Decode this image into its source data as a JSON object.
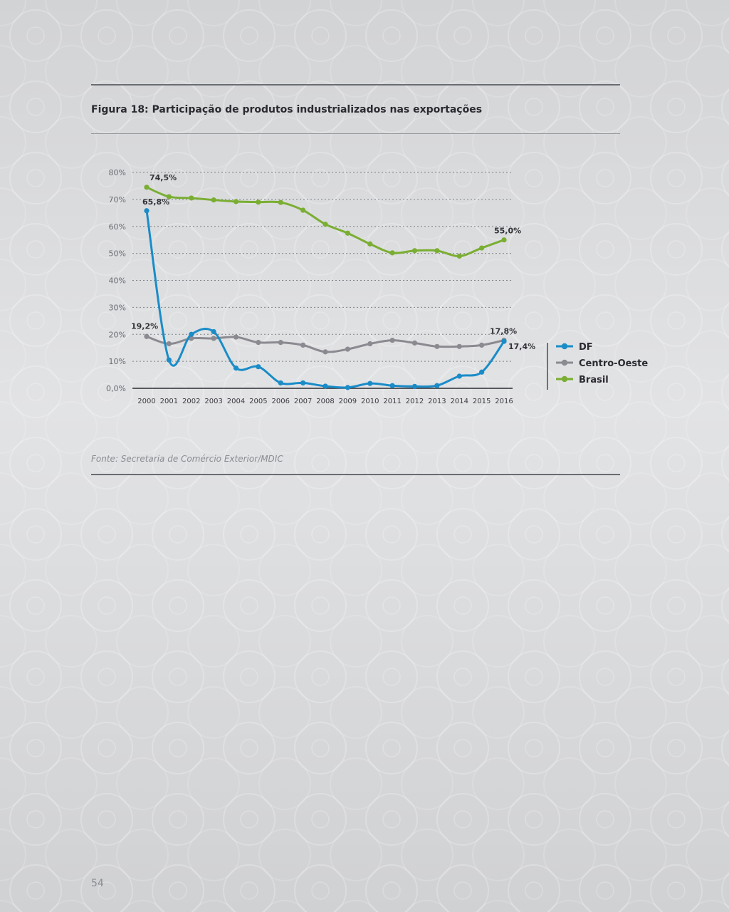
{
  "figure": {
    "title": "Figura 18:  Participação de produtos industrializados nas exportações",
    "source": "Fonte: Secretaria de Comércio Exterior/MDIC"
  },
  "page": {
    "number": "54"
  },
  "colors": {
    "df": "#1a8cc8",
    "centro_oeste": "#8a8a90",
    "brasil": "#7aae32",
    "axis_text": "#6a6c72",
    "label_text": "#333338",
    "grid": "#808288"
  },
  "chart_data": {
    "type": "line",
    "title": "Participação de produtos industrializados nas exportações",
    "xlabel": "",
    "ylabel": "",
    "x": [
      "2000",
      "2001",
      "2002",
      "2003",
      "2004",
      "2005",
      "2006",
      "2007",
      "2008",
      "2009",
      "2010",
      "2011",
      "2012",
      "2013",
      "2014",
      "2015",
      "2016"
    ],
    "ylim": [
      0,
      80
    ],
    "yticks": [
      0,
      10,
      20,
      30,
      40,
      50,
      60,
      70,
      80
    ],
    "ytick_labels": [
      "0,0%",
      "10%",
      "20%",
      "30%",
      "40%",
      "50%",
      "60%",
      "70%",
      "80%"
    ],
    "grid": "horizontal dotted",
    "legend_position": "right",
    "series": [
      {
        "name": "DF",
        "color": "#1a8cc8",
        "values": [
          65.8,
          10.5,
          20.0,
          21.0,
          7.5,
          8.0,
          2.0,
          2.0,
          0.8,
          0.3,
          1.8,
          1.0,
          0.7,
          1.0,
          4.5,
          6.0,
          17.4
        ]
      },
      {
        "name": "Centro-Oeste",
        "color": "#8a8a90",
        "values": [
          19.2,
          16.5,
          18.5,
          18.5,
          19.0,
          17.0,
          17.0,
          16.0,
          13.5,
          14.5,
          16.5,
          17.8,
          16.8,
          15.5,
          15.5,
          16.0,
          17.8
        ]
      },
      {
        "name": "Brasil",
        "color": "#7aae32",
        "values": [
          74.5,
          71.0,
          70.5,
          69.8,
          69.2,
          69.0,
          68.9,
          66.0,
          60.8,
          57.5,
          53.5,
          50.2,
          51.0,
          51.0,
          49.0,
          52.0,
          55.0
        ]
      }
    ],
    "annotations": [
      {
        "series": "Brasil",
        "index": 0,
        "text": "74,5%"
      },
      {
        "series": "DF",
        "index": 0,
        "text": "65,8%"
      },
      {
        "series": "Centro-Oeste",
        "index": 0,
        "text": "19,2%"
      },
      {
        "series": "Brasil",
        "index": 16,
        "text": "55,0%"
      },
      {
        "series": "Centro-Oeste",
        "index": 16,
        "text": "17,8%"
      },
      {
        "series": "DF",
        "index": 16,
        "text": "17,4%"
      }
    ]
  }
}
